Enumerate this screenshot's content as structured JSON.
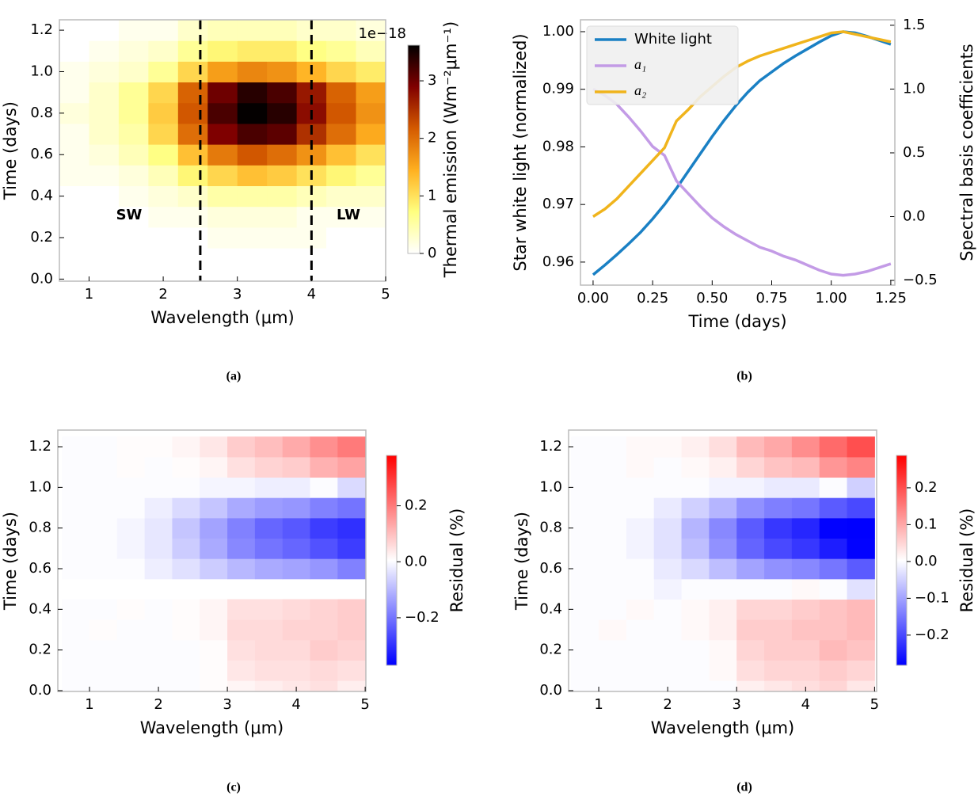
{
  "chart_data": [
    {
      "type": "heatmap",
      "caption": "(a)",
      "xlabel": "Wavelength (μm)",
      "ylabel": "Time (days)",
      "xlim": [
        0.6,
        5
      ],
      "ylim": [
        -0.01,
        1.25
      ],
      "xticks": [
        1,
        2,
        3,
        4,
        5
      ],
      "yticks": [
        {
          "value": 0,
          "label": "0.0"
        },
        0.2,
        0.4,
        0.6,
        0.8,
        {
          "value": 1,
          "label": "1.0"
        },
        1.2
      ],
      "x": [
        0.8,
        1.2,
        1.6,
        2.0,
        2.4,
        2.8,
        3.2,
        3.6,
        4.0,
        4.4,
        4.8
      ],
      "y": [
        0,
        0.1,
        0.2,
        0.3,
        0.4,
        0.5,
        0.6,
        0.7,
        0.8,
        0.9,
        1.0,
        1.1,
        1.2
      ],
      "z": [
        [
          0,
          0,
          0,
          0,
          0,
          0,
          0,
          0,
          0,
          0,
          0
        ],
        [
          0,
          0,
          0,
          0,
          0,
          0,
          0,
          0,
          0,
          0,
          0
        ],
        [
          0,
          0,
          0,
          0,
          0,
          0.1,
          0.1,
          0.1,
          0.1,
          0,
          0
        ],
        [
          0,
          0,
          0,
          0.1,
          0.1,
          0.2,
          0.2,
          0.2,
          0.1,
          0.1,
          0.1
        ],
        [
          0,
          0,
          0.1,
          0.2,
          0.3,
          0.5,
          0.5,
          0.5,
          0.4,
          0.3,
          0.3
        ],
        [
          0.1,
          0.1,
          0.2,
          0.4,
          0.8,
          1.1,
          1.3,
          1.2,
          1.0,
          0.8,
          0.6
        ],
        [
          0.1,
          0.2,
          0.4,
          0.7,
          1.3,
          1.9,
          2.2,
          2.0,
          1.7,
          1.3,
          1.0
        ],
        [
          0.1,
          0.3,
          0.5,
          1.1,
          2.0,
          2.9,
          3.2,
          3.1,
          2.5,
          2.0,
          1.5
        ],
        [
          0.2,
          0.3,
          0.6,
          1.2,
          2.2,
          3.2,
          3.6,
          3.4,
          2.8,
          2.2,
          1.7
        ],
        [
          0.1,
          0.3,
          0.6,
          1.1,
          2.1,
          3.0,
          3.4,
          3.2,
          2.7,
          2.1,
          1.6
        ],
        [
          0.1,
          0.2,
          0.3,
          0.6,
          1.1,
          1.6,
          1.8,
          1.7,
          1.4,
          1.1,
          0.9
        ],
        [
          0,
          0.1,
          0.2,
          0.3,
          0.6,
          0.8,
          0.9,
          0.9,
          0.7,
          0.6,
          0.4
        ],
        [
          0,
          0,
          0.1,
          0.1,
          0.3,
          0.4,
          0.4,
          0.4,
          0.3,
          0.3,
          0.2
        ]
      ],
      "vlines": [
        2.5,
        4.0
      ],
      "annotations": [
        "SW",
        "LW"
      ],
      "colorbar": {
        "label": "Thermal emission (Wm⁻²μm⁻¹)",
        "offset_text": "1e−18",
        "lim": [
          0,
          3.62
        ],
        "ticks": [
          0,
          1,
          2,
          3
        ],
        "colormap": [
          "#ffffff",
          "#ffff80",
          "#ffb020",
          "#d45a00",
          "#800000",
          "#000000"
        ]
      }
    },
    {
      "type": "line",
      "caption": "(b)",
      "xlabel": "Time (days)",
      "ylabel": "Star white light (normalized)",
      "y2label": "Spectral basis coefficients",
      "xlim": [
        -0.053,
        1.267
      ],
      "ylim": [
        0.956,
        1.00206
      ],
      "y2lim": [
        -0.537,
        1.543
      ],
      "xticks": [
        {
          "value": 0,
          "label": "0.00"
        },
        0.25,
        {
          "value": 0.5,
          "label": "0.50"
        },
        0.75,
        {
          "value": 1,
          "label": "1.00"
        },
        1.25
      ],
      "yticks": [
        0.96,
        0.97,
        0.98,
        0.99,
        {
          "value": 1,
          "label": "1.00"
        }
      ],
      "y2ticks": [
        {
          "value": -0.5,
          "label": "−0.5"
        },
        {
          "value": 0,
          "label": "0.0"
        },
        0.5,
        {
          "value": 1,
          "label": "1.0"
        },
        1.5
      ],
      "legend": "upper left",
      "x": [
        0,
        0.05,
        0.1,
        0.15,
        0.2,
        0.25,
        0.3,
        0.35,
        0.4,
        0.45,
        0.5,
        0.55,
        0.6,
        0.65,
        0.7,
        0.75,
        0.8,
        0.85,
        0.9,
        0.95,
        1.0,
        1.05,
        1.1,
        1.15,
        1.2,
        1.25
      ],
      "series": [
        {
          "name": "White light",
          "color": "#1a80c4",
          "values": [
            0.9578,
            0.9595,
            0.9613,
            0.9632,
            0.9652,
            0.9675,
            0.97,
            0.9728,
            0.9758,
            0.9788,
            0.9818,
            0.9846,
            0.9872,
            0.9895,
            0.9915,
            0.993,
            0.9945,
            0.9958,
            0.997,
            0.9982,
            0.9993,
            1.0,
            0.9998,
            0.9992,
            0.9985,
            0.9978
          ]
        },
        {
          "name": "a₁",
          "color": "#c39be6",
          "axis": "y2",
          "values": [
            1.0,
            0.95,
            0.88,
            0.78,
            0.67,
            0.55,
            0.48,
            0.28,
            0.18,
            0.08,
            -0.01,
            -0.08,
            -0.14,
            -0.19,
            -0.24,
            -0.27,
            -0.31,
            -0.34,
            -0.38,
            -0.42,
            -0.45,
            -0.46,
            -0.45,
            -0.43,
            -0.4,
            -0.37
          ]
        },
        {
          "name": "a₂",
          "color": "#f0b41c",
          "axis": "y2",
          "values": [
            0.0,
            0.06,
            0.14,
            0.24,
            0.34,
            0.44,
            0.54,
            0.75,
            0.84,
            0.94,
            1.02,
            1.1,
            1.17,
            1.22,
            1.26,
            1.29,
            1.32,
            1.35,
            1.38,
            1.41,
            1.44,
            1.45,
            1.43,
            1.41,
            1.39,
            1.37
          ]
        }
      ]
    },
    {
      "type": "heatmap",
      "caption": "(c)",
      "xlabel": "Wavelength (μm)",
      "ylabel": "Time (days)",
      "xlim": [
        0.54,
        5.01
      ],
      "ylim": [
        -0.004,
        1.282
      ],
      "xticks": [
        1,
        2,
        3,
        4,
        5
      ],
      "yticks": [
        {
          "value": 0,
          "label": "0.0"
        },
        0.2,
        0.4,
        0.6,
        0.8,
        {
          "value": 1,
          "label": "1.0"
        },
        1.2
      ],
      "x": [
        0.8,
        1.2,
        1.6,
        2.0,
        2.4,
        2.8,
        3.2,
        3.6,
        4.0,
        4.4,
        4.8
      ],
      "y": [
        0,
        0.1,
        0.2,
        0.3,
        0.4,
        0.5,
        0.6,
        0.7,
        0.8,
        0.9,
        1.0,
        1.1,
        1.2
      ],
      "z": [
        [
          0,
          0,
          0,
          0,
          0,
          0.01,
          0.02,
          0.03,
          0.04,
          0.05,
          0.03
        ],
        [
          0,
          0,
          0,
          0,
          0,
          0.01,
          0.04,
          0.05,
          0.05,
          0.06,
          0.05
        ],
        [
          0,
          0,
          0,
          0,
          0,
          0.01,
          0.05,
          0.06,
          0.06,
          0.08,
          0.07
        ],
        [
          0,
          0.01,
          0,
          0,
          0.01,
          0.02,
          0.06,
          0.06,
          0.07,
          0.07,
          0.08
        ],
        [
          0,
          0,
          0.01,
          0,
          0.01,
          0.02,
          0.05,
          0.05,
          0.06,
          0.07,
          0.08
        ],
        [
          null,
          null,
          null,
          null,
          null,
          null,
          null,
          null,
          null,
          null,
          null
        ],
        [
          0,
          0,
          0,
          -0.02,
          -0.04,
          -0.07,
          -0.1,
          -0.12,
          -0.13,
          -0.15,
          -0.18
        ],
        [
          0,
          0,
          -0.01,
          -0.03,
          -0.07,
          -0.12,
          -0.17,
          -0.2,
          -0.22,
          -0.25,
          -0.28
        ],
        [
          0,
          0,
          -0.01,
          -0.03,
          -0.08,
          -0.13,
          -0.18,
          -0.22,
          -0.24,
          -0.28,
          -0.3
        ],
        [
          0,
          0,
          0,
          -0.02,
          -0.05,
          -0.08,
          -0.12,
          -0.14,
          -0.15,
          -0.18,
          -0.2
        ],
        [
          0,
          0,
          0,
          0,
          0,
          -0.01,
          -0.01,
          -0.02,
          -0.02,
          0,
          -0.05
        ],
        [
          0,
          0,
          0.01,
          0,
          0.01,
          0.02,
          0.05,
          0.07,
          0.08,
          0.12,
          0.14
        ],
        [
          0,
          0,
          0.01,
          0.01,
          0.02,
          0.04,
          0.08,
          0.1,
          0.13,
          0.17,
          0.2
        ]
      ],
      "colorbar": {
        "label": "Residual (%)",
        "lim": [
          -0.37,
          0.38
        ],
        "ticks": [
          {
            "value": -0.2,
            "label": "−0.2"
          },
          {
            "value": 0,
            "label": "0.0"
          },
          0.2
        ],
        "colormap": [
          "#0000ff",
          "#ffffff",
          "#ff0000"
        ]
      }
    },
    {
      "type": "heatmap",
      "caption": "(d)",
      "xlabel": "Wavelength (μm)",
      "ylabel": "Time (days)",
      "xlim": [
        0.563,
        5.03
      ],
      "ylim": [
        -0.004,
        1.282
      ],
      "xticks": [
        1,
        2,
        3,
        4,
        5
      ],
      "yticks": [
        {
          "value": 0,
          "label": "0.0"
        },
        0.2,
        0.4,
        0.6,
        0.8,
        {
          "value": 1,
          "label": "1.0"
        },
        1.2
      ],
      "x": [
        0.8,
        1.2,
        1.6,
        2.0,
        2.4,
        2.8,
        3.2,
        3.6,
        4.0,
        4.4,
        4.8
      ],
      "y": [
        0,
        0.1,
        0.2,
        0.3,
        0.4,
        0.5,
        0.6,
        0.7,
        0.8,
        0.9,
        1.0,
        1.1,
        1.2
      ],
      "z": [
        [
          0,
          0,
          0,
          0,
          0,
          0,
          0.02,
          0.03,
          0.04,
          0.05,
          0.03
        ],
        [
          0,
          0,
          0,
          0,
          0,
          0.01,
          0.04,
          0.05,
          0.05,
          0.06,
          0.05
        ],
        [
          0,
          0,
          0,
          0,
          0,
          0.01,
          0.05,
          0.06,
          0.06,
          0.08,
          0.07
        ],
        [
          0,
          0.01,
          0,
          0,
          0.01,
          0.02,
          0.06,
          0.06,
          0.07,
          0.07,
          0.08
        ],
        [
          0,
          0,
          0.01,
          0,
          0.01,
          0.02,
          0.05,
          0.05,
          0.06,
          0.07,
          0.08
        ],
        [
          0,
          0,
          0,
          -0.01,
          0,
          0,
          0,
          0,
          0.01,
          0,
          -0.03
        ],
        [
          0,
          0,
          0,
          -0.02,
          -0.04,
          -0.07,
          -0.1,
          -0.12,
          -0.13,
          -0.15,
          -0.18
        ],
        [
          0,
          0,
          -0.01,
          -0.03,
          -0.07,
          -0.12,
          -0.17,
          -0.2,
          -0.22,
          -0.25,
          -0.28
        ],
        [
          0,
          0,
          -0.01,
          -0.03,
          -0.08,
          -0.13,
          -0.18,
          -0.22,
          -0.24,
          -0.28,
          -0.3
        ],
        [
          0,
          0,
          0,
          -0.02,
          -0.05,
          -0.08,
          -0.12,
          -0.14,
          -0.15,
          -0.18,
          -0.2
        ],
        [
          0,
          0,
          0,
          0,
          0,
          -0.01,
          -0.01,
          -0.02,
          -0.02,
          0,
          -0.05
        ],
        [
          0,
          0,
          0.01,
          0,
          0.01,
          0.02,
          0.05,
          0.07,
          0.08,
          0.12,
          0.14
        ],
        [
          0,
          0,
          0.01,
          0.01,
          0.02,
          0.04,
          0.08,
          0.1,
          0.13,
          0.17,
          0.2
        ]
      ],
      "colorbar": {
        "label": "Residual (%)",
        "lim": [
          -0.282,
          0.288
        ],
        "ticks": [
          {
            "value": -0.2,
            "label": "−0.2"
          },
          {
            "value": -0.1,
            "label": "−0.1"
          },
          {
            "value": 0,
            "label": "0.0"
          },
          0.1,
          0.2
        ],
        "colormap": [
          "#0000ff",
          "#ffffff",
          "#ff0000"
        ]
      }
    }
  ]
}
